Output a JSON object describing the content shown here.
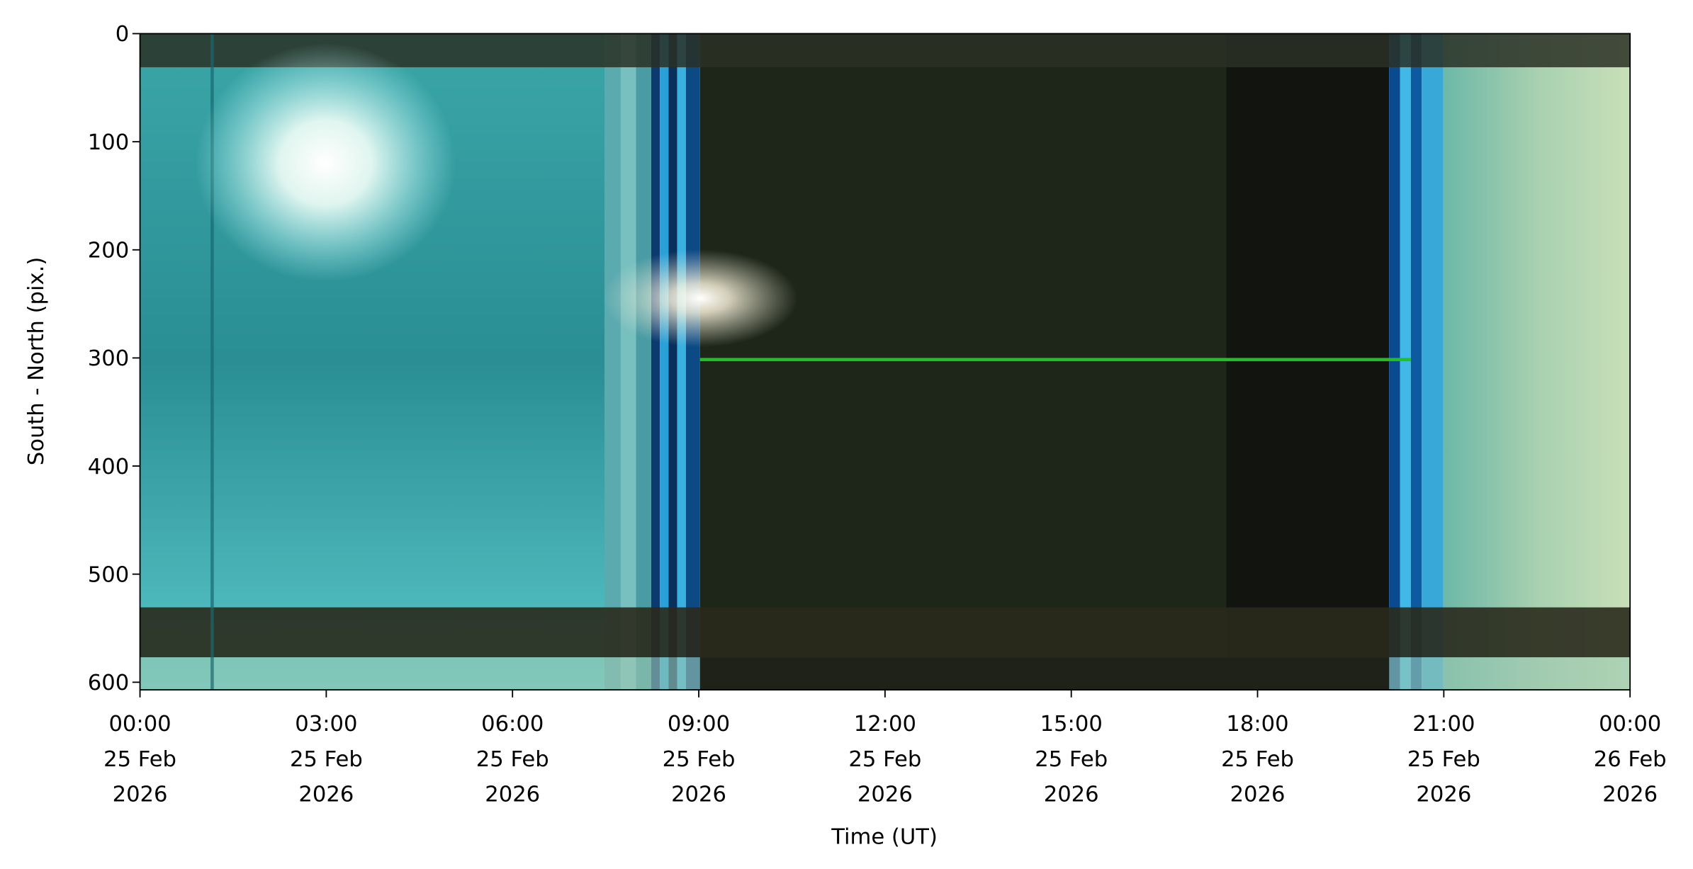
{
  "chart_data": {
    "type": "keogram",
    "xlabel": "Time (UT)",
    "ylabel": "South - North (pix.)",
    "xlim": [
      "2026-02-25T00:00",
      "2026-02-26T00:00"
    ],
    "xticks": [
      {
        "value": "2026-02-25T00:00",
        "label": "00:00\n25 Feb\n2026"
      },
      {
        "value": "2026-02-25T03:00",
        "label": "03:00\n25 Feb\n2026"
      },
      {
        "value": "2026-02-25T06:00",
        "label": "06:00\n25 Feb\n2026"
      },
      {
        "value": "2026-02-25T09:00",
        "label": "09:00\n25 Feb\n2026"
      },
      {
        "value": "2026-02-25T12:00",
        "label": "12:00\n25 Feb\n2026"
      },
      {
        "value": "2026-02-25T15:00",
        "label": "15:00\n25 Feb\n2026"
      },
      {
        "value": "2026-02-25T18:00",
        "label": "18:00\n25 Feb\n2026"
      },
      {
        "value": "2026-02-25T21:00",
        "label": "21:00\n25 Feb\n2026"
      },
      {
        "value": "2026-02-26T00:00",
        "label": "00:00\n26 Feb\n2026"
      }
    ],
    "ylim": [
      0,
      607
    ],
    "yinverted": true,
    "yticks": [
      0,
      100,
      200,
      300,
      400,
      500,
      600
    ]
  }
}
